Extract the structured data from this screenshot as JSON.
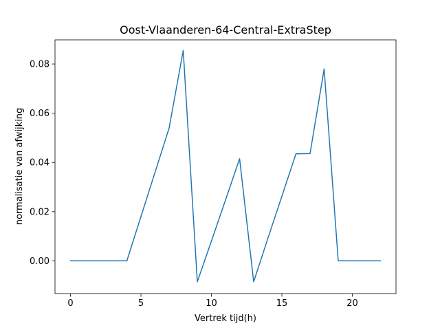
{
  "chart_data": {
    "type": "line",
    "title": "Oost-Vlaanderen-64-Central-ExtraStep",
    "xlabel": "Vertrek tijd(h)",
    "ylabel": "normalisatie van afwijking",
    "xlim": [
      -1.1,
      23.1
    ],
    "ylim": [
      -0.0133,
      0.0898
    ],
    "x_ticks": [
      0,
      5,
      10,
      15,
      20
    ],
    "x_tick_labels": [
      "0",
      "5",
      "10",
      "15",
      "20"
    ],
    "y_ticks": [
      0.0,
      0.02,
      0.04,
      0.06,
      0.08
    ],
    "y_tick_labels": [
      "0.00",
      "0.02",
      "0.04",
      "0.06",
      "0.08"
    ],
    "grid": false,
    "series": [
      {
        "color": "#1f77b4",
        "x": [
          0,
          1,
          2,
          3,
          4,
          5,
          6,
          7,
          8,
          9,
          10,
          11,
          12,
          13,
          14,
          15,
          16,
          17,
          18,
          19,
          20,
          21,
          22
        ],
        "y": [
          0.0,
          0.0,
          0.0,
          0.0,
          0.0,
          0.018,
          0.036,
          0.054,
          0.0855,
          -0.0085,
          0.008,
          0.0247,
          0.0415,
          -0.0085,
          0.009,
          0.0262,
          0.0435,
          0.0436,
          0.078,
          0.0,
          0.0,
          0.0,
          0.0
        ]
      }
    ]
  }
}
